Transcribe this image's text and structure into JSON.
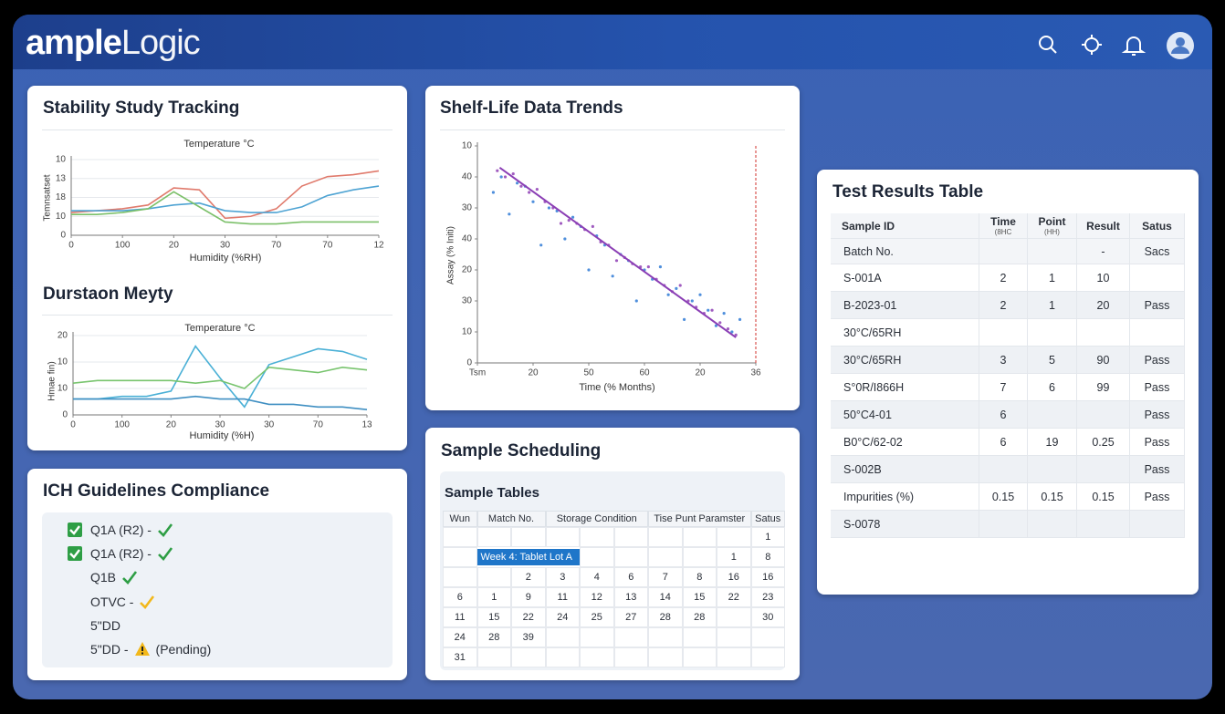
{
  "header": {
    "logo_bold": "ample",
    "logo_light": "Logic"
  },
  "stability": {
    "title": "Stability Study Tracking",
    "section_title": "Durstaon Meyty"
  },
  "shelf_life": {
    "title": "Shelf-Life Data Trends"
  },
  "chart_data": [
    {
      "type": "line",
      "title": "Temperature °C",
      "x_label": "Humidity (%RH)",
      "y_label": "Temnsatset",
      "x": [
        0,
        1,
        2,
        3,
        4,
        5,
        6,
        7,
        8,
        9,
        10,
        11,
        12
      ],
      "xlim": [
        0,
        12
      ],
      "xticks": [
        0,
        {
          "value": 2,
          "label": "100"
        },
        {
          "value": 4,
          "label": "20"
        },
        {
          "value": 6,
          "label": "30"
        },
        {
          "value": 8,
          "label": "70"
        },
        {
          "value": 10,
          "label": "70"
        },
        12
      ],
      "ylim": [
        0,
        4
      ],
      "yticks": [
        0,
        {
          "value": 1,
          "label": "10"
        },
        {
          "value": 2,
          "label": "18"
        },
        {
          "value": 3,
          "label": "13"
        },
        {
          "value": 4,
          "label": "10"
        }
      ],
      "grid": true,
      "series": [
        {
          "color": "#e07a6c",
          "values": [
            1.2,
            1.3,
            1.4,
            1.6,
            2.5,
            2.4,
            0.9,
            1.0,
            1.4,
            2.6,
            3.1,
            3.2,
            3.4
          ]
        },
        {
          "color": "#4ea3d3",
          "values": [
            1.3,
            1.3,
            1.3,
            1.4,
            1.6,
            1.7,
            1.3,
            1.2,
            1.2,
            1.5,
            2.1,
            2.4,
            2.6
          ]
        },
        {
          "color": "#7cc06a",
          "values": [
            1.1,
            1.1,
            1.2,
            1.4,
            2.3,
            1.5,
            0.7,
            0.6,
            0.6,
            0.7,
            0.7,
            0.7,
            0.7
          ]
        }
      ]
    },
    {
      "type": "line",
      "title": "Temperature °C",
      "x_label": "Humidity (%H)",
      "y_label": "Hmae fin)",
      "x": [
        0,
        1,
        2,
        3,
        4,
        5,
        6,
        7,
        8,
        9,
        10,
        11,
        12
      ],
      "xlim": [
        0,
        12
      ],
      "xticks": [
        0,
        {
          "value": 2,
          "label": "100"
        },
        {
          "value": 4,
          "label": "20"
        },
        {
          "value": 6,
          "label": "30"
        },
        {
          "value": 8,
          "label": "30"
        },
        {
          "value": 10,
          "label": "70"
        },
        {
          "value": 12,
          "label": "13"
        }
      ],
      "ylim": [
        0,
        3
      ],
      "yticks": [
        0,
        {
          "value": 1,
          "label": "10"
        },
        {
          "value": 2,
          "label": "10"
        },
        {
          "value": 3,
          "label": "20"
        }
      ],
      "grid": true,
      "series": [
        {
          "color": "#4ab0d6",
          "values": [
            0.6,
            0.6,
            0.7,
            0.7,
            0.9,
            2.6,
            1.4,
            0.3,
            1.9,
            2.2,
            2.5,
            2.4,
            2.1
          ]
        },
        {
          "color": "#78c46e",
          "values": [
            1.2,
            1.3,
            1.3,
            1.3,
            1.3,
            1.2,
            1.3,
            1.0,
            1.8,
            1.7,
            1.6,
            1.8,
            1.7
          ]
        },
        {
          "color": "#3f8fc2",
          "values": [
            0.6,
            0.6,
            0.6,
            0.6,
            0.6,
            0.7,
            0.6,
            0.6,
            0.4,
            0.4,
            0.3,
            0.3,
            0.2
          ]
        }
      ]
    },
    {
      "type": "scatter",
      "x_label": "Time (% Months)",
      "y_label": "Assay (% Initi)",
      "xlim": [
        0,
        35
      ],
      "xticks": [
        {
          "value": 0,
          "label": "Tsm"
        },
        {
          "value": 7,
          "label": "20"
        },
        {
          "value": 14,
          "label": "50"
        },
        {
          "value": 21,
          "label": "60"
        },
        {
          "value": 28,
          "label": "20"
        },
        {
          "value": 35,
          "label": "36"
        }
      ],
      "ylim": [
        0,
        70
      ],
      "yticks": [
        0,
        10,
        {
          "value": 20,
          "label": "30"
        },
        {
          "value": 30,
          "label": "20"
        },
        40,
        {
          "value": 50,
          "label": "30"
        },
        {
          "value": 60,
          "label": "40"
        },
        {
          "value": 70,
          "label": "10"
        }
      ],
      "grid": false,
      "series": [
        {
          "color": "#4f8fdc",
          "x": [
            2,
            3,
            4,
            5,
            6,
            7,
            8,
            9,
            10,
            11,
            12,
            13,
            14,
            15,
            16,
            17,
            18,
            19,
            20,
            21,
            22,
            23,
            24,
            25,
            26,
            27,
            28,
            29,
            30,
            31,
            32,
            33
          ],
          "values": [
            55,
            60,
            48,
            58,
            57,
            52,
            38,
            50,
            49,
            40,
            47,
            44,
            30,
            41,
            38,
            28,
            35,
            33,
            20,
            30,
            27,
            31,
            22,
            24,
            14,
            20,
            22,
            17,
            12,
            16,
            10,
            14
          ]
        },
        {
          "color": "#a05cc0",
          "x": [
            2.5,
            3.5,
            4.5,
            5.5,
            6.5,
            7.5,
            8.5,
            9.5,
            10.5,
            11.5,
            12.5,
            13.5,
            14.5,
            15.5,
            16.5,
            17.5,
            18.5,
            19.5,
            20.5,
            21.5,
            22.5,
            23.5,
            24.5,
            25.5,
            26.5,
            27.5,
            28.5,
            29.5,
            30.5,
            31.5,
            32.5
          ],
          "values": [
            62,
            60,
            61,
            57,
            55,
            56,
            52,
            50,
            45,
            46,
            45,
            43,
            44,
            39,
            38,
            33,
            34,
            32,
            31,
            31,
            27,
            25,
            23,
            25,
            20,
            18,
            16,
            17,
            13,
            11,
            9
          ]
        }
      ],
      "trend_line": {
        "color": "#8b3fb5",
        "x": [
          2.8,
          32.5
        ],
        "values": [
          63,
          8.2
        ]
      },
      "reference_x": 35,
      "reference_color": "#d9534f"
    }
  ],
  "ich": {
    "title": "ICH Guidelines Compliance",
    "items": [
      {
        "label": "Q1A (R2) -",
        "checkbox": true,
        "status": "pass"
      },
      {
        "label": "Q1A (R2) -",
        "checkbox": true,
        "status": "pass"
      },
      {
        "label": "Q1B",
        "checkbox": false,
        "status": "pass"
      },
      {
        "label": "OTVC -",
        "checkbox": false,
        "status": "partial"
      },
      {
        "label": "5\"DD",
        "checkbox": false,
        "status": "none"
      },
      {
        "label": "5\"DD -",
        "checkbox": false,
        "status": "pending",
        "note": "(Pending)"
      }
    ]
  },
  "scheduling": {
    "title": "Sample Scheduling",
    "table_title": "Sample Tables",
    "columns": [
      "Wun",
      "Match No.",
      "Storage Condition",
      "Tise Punt Paramster",
      "Satus"
    ],
    "rows": [
      [
        null,
        null,
        null,
        null,
        null,
        null,
        null,
        null,
        null,
        "1"
      ],
      [
        null,
        {
          "text": "Week 4: Tablet Lot A",
          "highlight": true
        },
        null,
        null,
        null,
        null,
        null,
        null,
        "1",
        "8"
      ],
      [
        null,
        null,
        "2",
        "3",
        "4",
        "6",
        "7",
        "8",
        "16",
        "16"
      ],
      [
        "6",
        "1",
        "9",
        "11",
        "12",
        "13",
        "14",
        "15",
        "22",
        "23"
      ],
      [
        "11",
        "15",
        "22",
        "24",
        "25",
        "27",
        "28",
        "28",
        null,
        "30"
      ],
      [
        "24",
        "28",
        "39",
        null,
        null,
        null,
        null,
        null,
        null,
        null
      ],
      [
        "31",
        null,
        null,
        null,
        null,
        null,
        null,
        null,
        null,
        null
      ]
    ]
  },
  "test_results": {
    "title": "Test Results Table",
    "columns": [
      {
        "label": "Sample ID"
      },
      {
        "label": "Time",
        "sub": "(8HC"
      },
      {
        "label": "Point",
        "sub": "(HH)"
      },
      {
        "label": "Result"
      },
      {
        "label": "Satus"
      }
    ],
    "rows": [
      [
        "Batch No.",
        null,
        null,
        "-",
        "Sacs"
      ],
      [
        "S-001A",
        "2",
        "1",
        "10",
        null
      ],
      [
        "B-2023-01",
        "2",
        "1",
        "20",
        "Pass"
      ],
      [
        "30°C/65RH",
        null,
        null,
        null,
        null
      ],
      [
        "30°C/65RH",
        "3",
        "5",
        "90",
        "Pass"
      ],
      [
        "S°0R/I866H",
        "7",
        "6",
        "99",
        "Pass"
      ],
      [
        "50°C4-01",
        "6",
        null,
        null,
        "Pass"
      ],
      [
        "B0°C/62-02",
        "6",
        "19",
        "0.25",
        "Pass"
      ],
      [
        "S-002B",
        null,
        null,
        null,
        "Pass"
      ],
      [
        "Impurities (%)",
        "0.15",
        "0.15",
        "0.15",
        "Pass"
      ],
      [
        "S-0078",
        null,
        null,
        null,
        null
      ]
    ]
  }
}
